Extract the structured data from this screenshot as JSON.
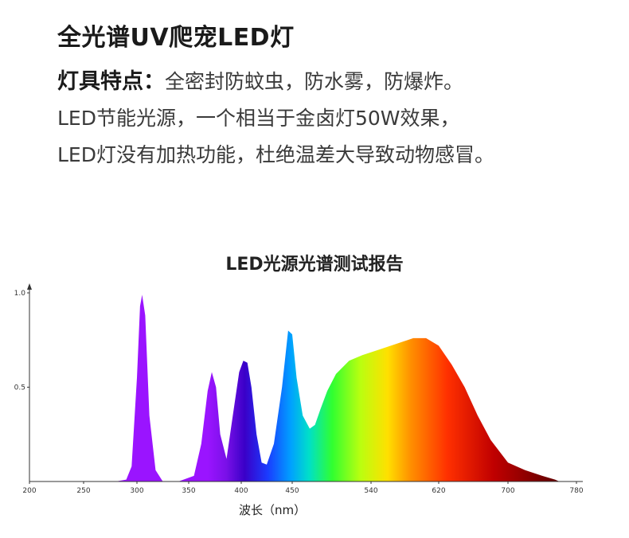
{
  "header": {
    "title": "全光谱UV爬宠LED灯",
    "features_label": "灯具特点：",
    "features_text": "全密封防蚊虫，防水雾，防爆炸。",
    "line2": "LED节能光源，一个相当于金卤灯50W效果，",
    "line3": "LED灯没有加热功能，杜绝温差大导致动物感冒。"
  },
  "chart_data": {
    "type": "area",
    "title": "LED光源光谱测试报告",
    "xlabel": "波长（nm）",
    "ylabel": "",
    "x_ticks": [
      200,
      250,
      300,
      350,
      400,
      450,
      540,
      620,
      700,
      780
    ],
    "y_ticks": [
      0.5,
      1.0
    ],
    "y_tick_labels": [
      "0.5",
      "1.0"
    ],
    "ylim": [
      0,
      1.0
    ],
    "grid": false,
    "x": [
      280,
      290,
      295,
      300,
      303,
      305,
      308,
      312,
      318,
      325,
      340,
      355,
      362,
      368,
      372,
      376,
      380,
      386,
      392,
      398,
      402,
      406,
      410,
      415,
      420,
      425,
      432,
      440,
      446,
      450,
      455,
      462,
      470,
      476,
      482,
      490,
      500,
      515,
      530,
      550,
      570,
      590,
      605,
      620,
      635,
      650,
      665,
      680,
      700,
      720,
      740,
      755,
      760,
      780
    ],
    "y": [
      0.0,
      0.01,
      0.08,
      0.55,
      0.93,
      0.99,
      0.88,
      0.35,
      0.06,
      0.0,
      0.0,
      0.03,
      0.2,
      0.48,
      0.58,
      0.5,
      0.25,
      0.12,
      0.35,
      0.58,
      0.64,
      0.63,
      0.5,
      0.25,
      0.1,
      0.09,
      0.2,
      0.5,
      0.8,
      0.78,
      0.55,
      0.35,
      0.28,
      0.3,
      0.38,
      0.48,
      0.57,
      0.64,
      0.67,
      0.7,
      0.73,
      0.76,
      0.76,
      0.72,
      0.62,
      0.5,
      0.35,
      0.22,
      0.1,
      0.06,
      0.03,
      0.01,
      0.0,
      0.0
    ]
  }
}
